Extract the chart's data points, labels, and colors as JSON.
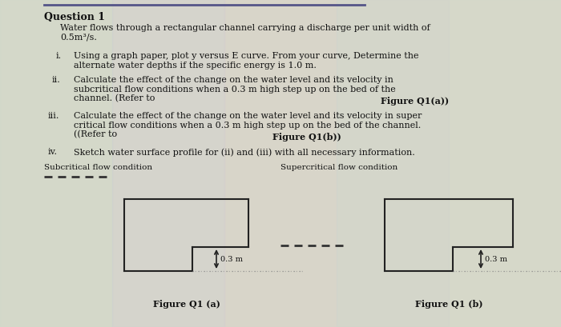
{
  "title": "Question 1",
  "bg_color": "#dcdccc",
  "text_color": "#1a1a1a",
  "top_line_color": "#6666aa",
  "figure_line_color": "#333333",
  "dotted_line_color": "#666666",
  "body_intro": "Water flows through a rectangular channel carrying a discharge per unit width of\n0.5m³/s.",
  "item_i_label": "i.",
  "item_i_text": "Using a graph paper, plot y versus E curve. From your curve, Determine the\nalternate water depths if the specific energy is 1.0 m.",
  "item_ii_label": "ii.",
  "item_ii_text1": "Calculate the effect of the change on the water level and its velocity in\nsubcritical flow conditions when a 0.3 m high step up on the bed of the\nchannel. (Refer to ",
  "item_ii_bold": "Figure Q1(a)",
  "item_ii_text2": ")",
  "item_iii_label": "iii.",
  "item_iii_text1": "Calculate the effect of the change on the water level and its velocity in super\ncritical flow conditions when a 0.3 m high step up on the bed of the channel.\n((Refer to ",
  "item_iii_bold": "Figure Q1(b)",
  "item_iii_text2": ")",
  "item_iv_label": "iv.",
  "item_iv_text": "Sketch water surface profile for (ii) and (iii) with all necessary information.",
  "subcritical_label": "Subcritical flow condition",
  "supercritical_label": "Supercritical flow condition",
  "fig_a_label": "Figure Q1 (a)",
  "fig_b_label": "Figure Q1 (b)",
  "step_height_label": "0.3 m"
}
